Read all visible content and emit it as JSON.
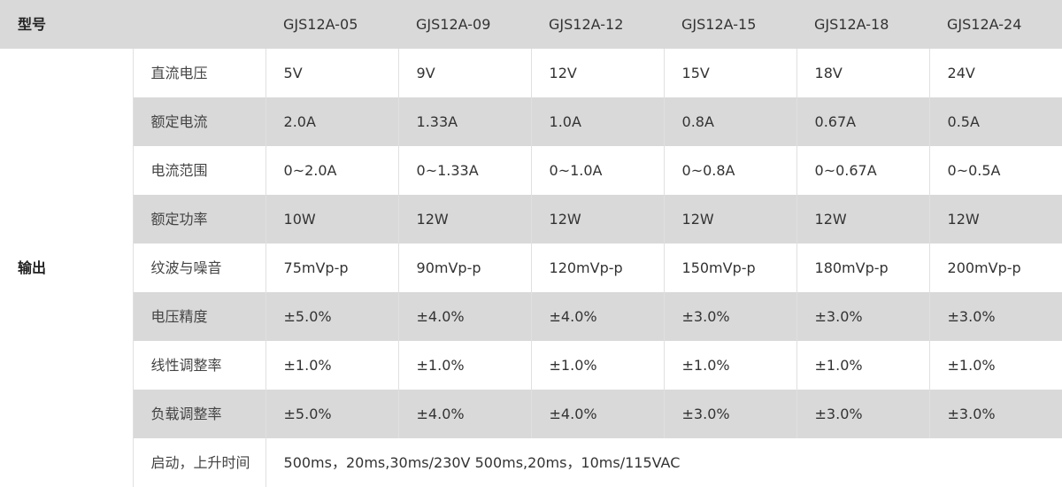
{
  "header": {
    "label": "型号",
    "models": [
      "GJS12A-05",
      "GJS12A-09",
      "GJS12A-12",
      "GJS12A-15",
      "GJS12A-18",
      "GJS12A-24"
    ]
  },
  "group_label": "输出",
  "rows": [
    {
      "param": "直流电压",
      "values": [
        "5V",
        "9V",
        "12V",
        "15V",
        "18V",
        "24V"
      ]
    },
    {
      "param": "额定电流",
      "values": [
        "2.0A",
        "1.33A",
        "1.0A",
        "0.8A",
        "0.67A",
        "0.5A"
      ]
    },
    {
      "param": "电流范围",
      "values": [
        "0~2.0A",
        "0~1.33A",
        "0~1.0A",
        "0~0.8A",
        "0~0.67A",
        "0~0.5A"
      ]
    },
    {
      "param": "额定功率",
      "values": [
        "10W",
        "12W",
        "12W",
        "12W",
        "12W",
        "12W"
      ]
    },
    {
      "param": "纹波与噪音",
      "values": [
        "75mVp-p",
        "90mVp-p",
        "120mVp-p",
        "150mVp-p",
        "180mVp-p",
        "200mVp-p"
      ]
    },
    {
      "param": "电压精度",
      "values": [
        "±5.0%",
        "±4.0%",
        "±4.0%",
        "±3.0%",
        "±3.0%",
        "±3.0%"
      ]
    },
    {
      "param": "线性调整率",
      "values": [
        "±1.0%",
        "±1.0%",
        "±1.0%",
        "±1.0%",
        "±1.0%",
        "±1.0%"
      ]
    },
    {
      "param": "负载调整率",
      "values": [
        "±5.0%",
        "±4.0%",
        "±4.0%",
        "±3.0%",
        "±3.0%",
        "±3.0%"
      ]
    }
  ],
  "last_row": {
    "param": "启动，上升时间",
    "value": "500ms，20ms,30ms/230V 500ms,20ms，10ms/115VAC"
  }
}
